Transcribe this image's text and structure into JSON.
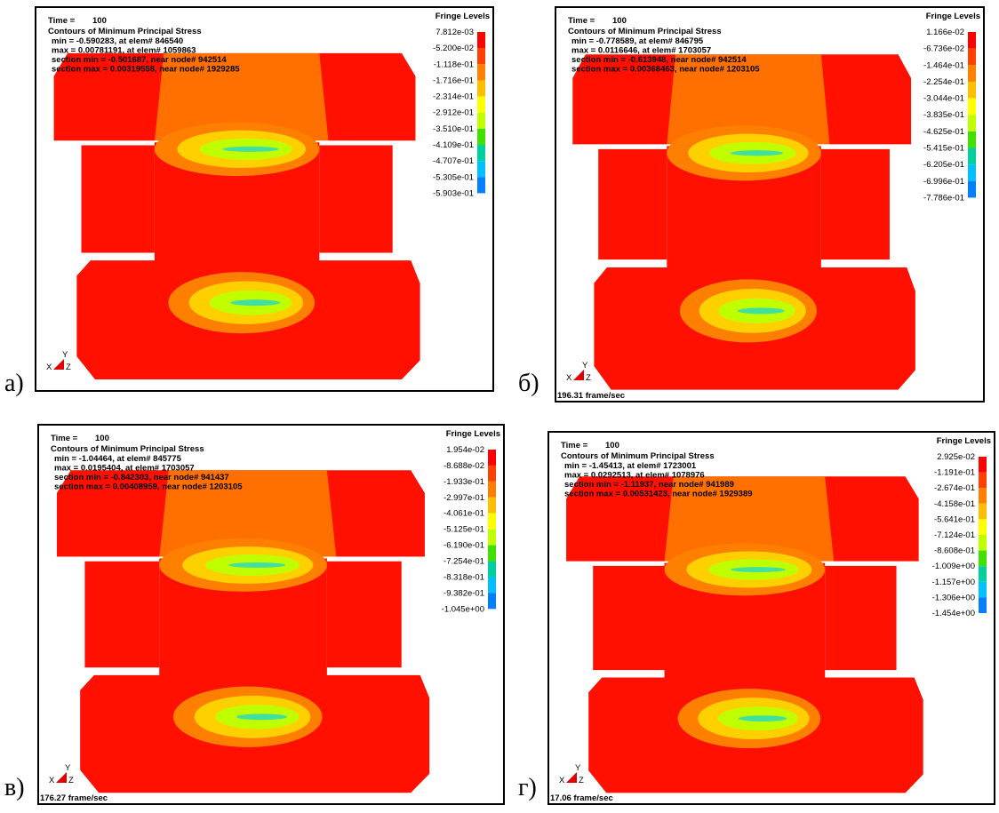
{
  "panels": [
    {
      "label": "а)",
      "time_label": "Time =",
      "time": "100",
      "title": "Contours of Minimum Principal Stress",
      "lines": [
        "min = -0.590283, at elem# 846540",
        "max = 0.00781191, at elem# 1059863",
        "section min = -0.501687, near node# 942514",
        "section max = 0.00319558, near node# 1929285"
      ],
      "legend_title": "Fringe Levels",
      "levels": [
        "7.812e-03",
        "-5.200e-02",
        "-1.118e-01",
        "-1.716e-01",
        "-2.314e-01",
        "-2.912e-01",
        "-3.510e-01",
        "-4.109e-01",
        "-4.707e-01",
        "-5.305e-01",
        "-5.903e-01"
      ]
    },
    {
      "label": "б)",
      "time_label": "Time =",
      "time": "100",
      "title": "Contours of Minimum Principal Stress",
      "lines": [
        "min = -0.778589, at elem# 846795",
        "max = 0.0116646, at elem# 1703057",
        "section min = -0.613948, near node# 942514",
        "section max = 0.00368463, near node# 1203105"
      ],
      "legend_title": "Fringe Levels",
      "levels": [
        "1.166e-02",
        "-6.736e-02",
        "-1.464e-01",
        "-2.254e-01",
        "-3.044e-01",
        "-3.835e-01",
        "-4.625e-01",
        "-5.415e-01",
        "-6.205e-01",
        "-6.996e-01",
        "-7.786e-01"
      ],
      "frame_rate": "196.31 frame/sec"
    },
    {
      "label": "в)",
      "time_label": "Time =",
      "time": "100",
      "title": "Contours of Minimum Principal Stress",
      "lines": [
        "min = -1.04464, at elem# 845775",
        "max = 0.0195404, at elem# 1703057",
        "section min = -0.842303, near node# 941437",
        "section max = 0.00408959, near node# 1203105"
      ],
      "legend_title": "Fringe Levels",
      "levels": [
        "1.954e-02",
        "-8.688e-02",
        "-1.933e-01",
        "-2.997e-01",
        "-4.061e-01",
        "-5.125e-01",
        "-6.190e-01",
        "-7.254e-01",
        "-8.318e-01",
        "-9.382e-01",
        "-1.045e+00"
      ],
      "frame_rate": "176.27 frame/sec"
    },
    {
      "label": "г)",
      "time_label": "Time =",
      "time": "100",
      "title": "Contours of Minimum Principal Stress",
      "lines": [
        "min = -1.45413, at elem# 1723001",
        "max = 0.0292513, at elem# 1078976",
        "section min = -1.11937, near node# 941989",
        "section max = 0.00531423, near node# 1929389"
      ],
      "legend_title": "Fringe Levels",
      "levels": [
        "2.925e-02",
        "-1.191e-01",
        "-2.674e-01",
        "-4.158e-01",
        "-5.641e-01",
        "-7.124e-01",
        "-8.608e-01",
        "-1.009e+00",
        "-1.157e+00",
        "-1.306e+00",
        "-1.454e+00"
      ],
      "frame_rate": "17.06 frame/sec"
    }
  ],
  "triad": {
    "x": "X",
    "y": "Y",
    "z": "Z"
  }
}
